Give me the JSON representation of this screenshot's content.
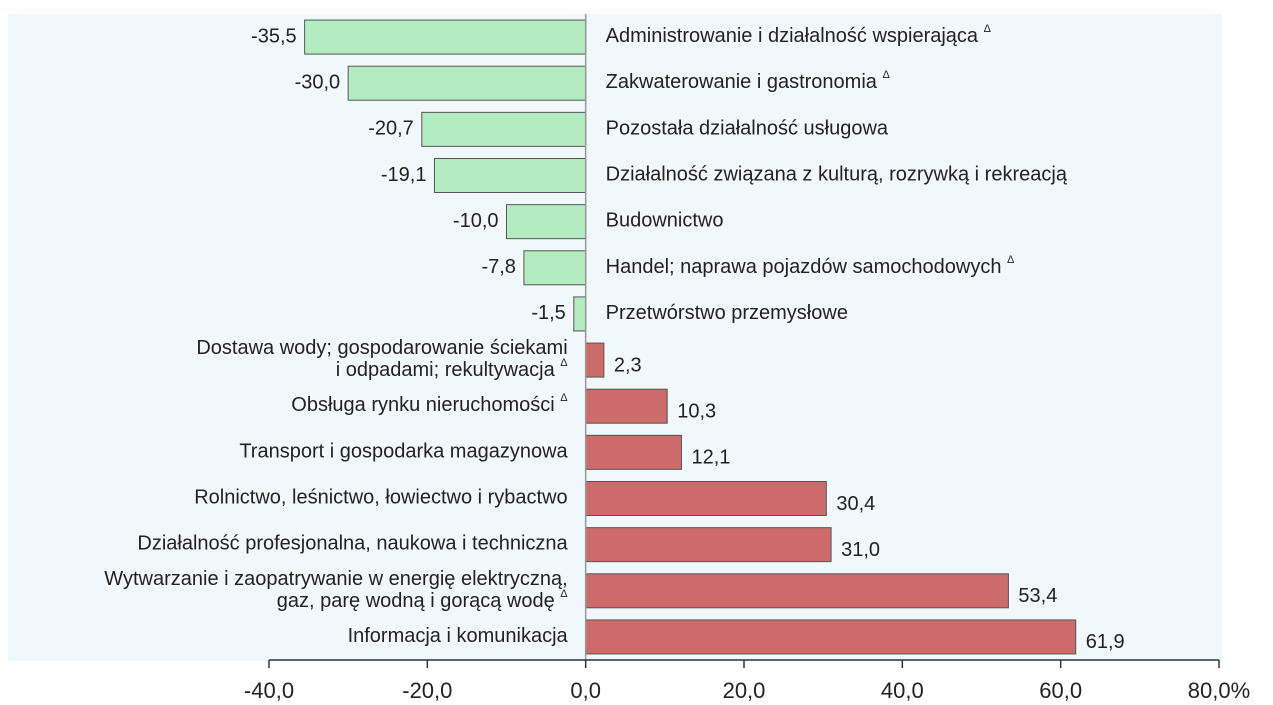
{
  "chart_data": {
    "type": "bar",
    "orientation": "horizontal",
    "categories": [
      "Administrowanie i działalność wspierająca Δ",
      "Zakwaterowanie i gastronomia Δ",
      "Pozostała działalność usługowa",
      "Działalność związana z kulturą, rozrywką i rekreacją",
      "Budownictwo",
      "Handel; naprawa pojazdów samochodowych Δ",
      "Przetwórstwo przemysłowe",
      "Dostawa wody; gospodarowanie ściekami\ni odpadami; rekultywacja Δ",
      "Obsługa rynku nieruchomości Δ",
      "Transport i gospodarka magazynowa",
      "Rolnictwo, leśnictwo, łowiectwo i rybactwo",
      "Działalność profesjonalna, naukowa i techniczna",
      "Wytwarzanie i zaopatrywanie w energię elektryczną,\ngaz, parę wodną i gorącą wodę Δ",
      "Informacja i komunikacja"
    ],
    "values": [
      -35.5,
      -30.0,
      -20.7,
      -19.1,
      -10.0,
      -7.8,
      -1.5,
      2.3,
      10.3,
      12.1,
      30.4,
      31.0,
      53.4,
      61.9
    ],
    "value_labels": [
      "-35,5",
      "-30,0",
      "-20,7",
      "-19,1",
      "-10,0",
      "-7,8",
      "-1,5",
      "2,3",
      "10,3",
      "12,1",
      "30,4",
      "31,0",
      "53,4",
      "61,9"
    ],
    "color_negative": "#b3ecc0",
    "color_positive": "#cd6b6b",
    "xlim": [
      -40,
      80
    ],
    "xticks": [
      {
        "value": -40,
        "label": "-40,0"
      },
      {
        "value": -20,
        "label": "-20,0"
      },
      {
        "value": 0,
        "label": "0,0"
      },
      {
        "value": 20,
        "label": "20,0"
      },
      {
        "value": 40,
        "label": "40,0"
      },
      {
        "value": 60,
        "label": "60,0"
      },
      {
        "value": 80,
        "label": "80,0%"
      }
    ]
  }
}
